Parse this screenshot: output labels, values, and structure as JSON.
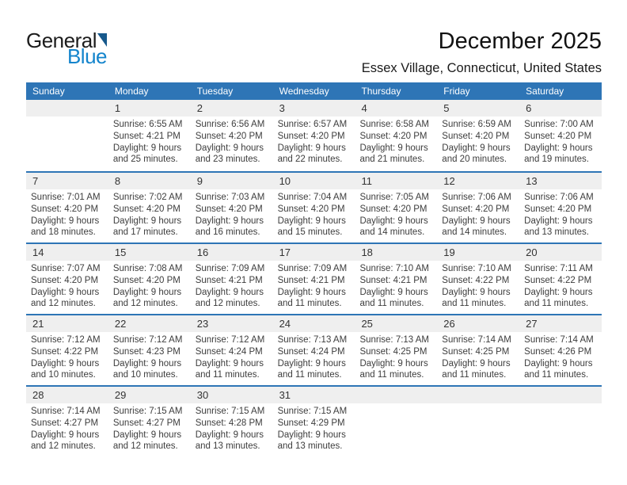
{
  "logo": {
    "text_general": "General",
    "text_blue": "Blue"
  },
  "header": {
    "title": "December 2025",
    "location": "Essex Village, Connecticut, United States"
  },
  "weekday_headers": [
    "Sunday",
    "Monday",
    "Tuesday",
    "Wednesday",
    "Thursday",
    "Friday",
    "Saturday"
  ],
  "colors": {
    "header_blue": "#2E75B6",
    "date_band_gray": "#EFEFEF",
    "logo_blue": "#1384CC",
    "logo_triangle_blue": "#17598C"
  },
  "weeks": [
    [
      null,
      {
        "date": "1",
        "lines": [
          "Sunrise: 6:55 AM",
          "Sunset: 4:21 PM",
          "Daylight: 9 hours",
          "and 25 minutes."
        ]
      },
      {
        "date": "2",
        "lines": [
          "Sunrise: 6:56 AM",
          "Sunset: 4:20 PM",
          "Daylight: 9 hours",
          "and 23 minutes."
        ]
      },
      {
        "date": "3",
        "lines": [
          "Sunrise: 6:57 AM",
          "Sunset: 4:20 PM",
          "Daylight: 9 hours",
          "and 22 minutes."
        ]
      },
      {
        "date": "4",
        "lines": [
          "Sunrise: 6:58 AM",
          "Sunset: 4:20 PM",
          "Daylight: 9 hours",
          "and 21 minutes."
        ]
      },
      {
        "date": "5",
        "lines": [
          "Sunrise: 6:59 AM",
          "Sunset: 4:20 PM",
          "Daylight: 9 hours",
          "and 20 minutes."
        ]
      },
      {
        "date": "6",
        "lines": [
          "Sunrise: 7:00 AM",
          "Sunset: 4:20 PM",
          "Daylight: 9 hours",
          "and 19 minutes."
        ]
      }
    ],
    [
      {
        "date": "7",
        "lines": [
          "Sunrise: 7:01 AM",
          "Sunset: 4:20 PM",
          "Daylight: 9 hours",
          "and 18 minutes."
        ]
      },
      {
        "date": "8",
        "lines": [
          "Sunrise: 7:02 AM",
          "Sunset: 4:20 PM",
          "Daylight: 9 hours",
          "and 17 minutes."
        ]
      },
      {
        "date": "9",
        "lines": [
          "Sunrise: 7:03 AM",
          "Sunset: 4:20 PM",
          "Daylight: 9 hours",
          "and 16 minutes."
        ]
      },
      {
        "date": "10",
        "lines": [
          "Sunrise: 7:04 AM",
          "Sunset: 4:20 PM",
          "Daylight: 9 hours",
          "and 15 minutes."
        ]
      },
      {
        "date": "11",
        "lines": [
          "Sunrise: 7:05 AM",
          "Sunset: 4:20 PM",
          "Daylight: 9 hours",
          "and 14 minutes."
        ]
      },
      {
        "date": "12",
        "lines": [
          "Sunrise: 7:06 AM",
          "Sunset: 4:20 PM",
          "Daylight: 9 hours",
          "and 14 minutes."
        ]
      },
      {
        "date": "13",
        "lines": [
          "Sunrise: 7:06 AM",
          "Sunset: 4:20 PM",
          "Daylight: 9 hours",
          "and 13 minutes."
        ]
      }
    ],
    [
      {
        "date": "14",
        "lines": [
          "Sunrise: 7:07 AM",
          "Sunset: 4:20 PM",
          "Daylight: 9 hours",
          "and 12 minutes."
        ]
      },
      {
        "date": "15",
        "lines": [
          "Sunrise: 7:08 AM",
          "Sunset: 4:20 PM",
          "Daylight: 9 hours",
          "and 12 minutes."
        ]
      },
      {
        "date": "16",
        "lines": [
          "Sunrise: 7:09 AM",
          "Sunset: 4:21 PM",
          "Daylight: 9 hours",
          "and 12 minutes."
        ]
      },
      {
        "date": "17",
        "lines": [
          "Sunrise: 7:09 AM",
          "Sunset: 4:21 PM",
          "Daylight: 9 hours",
          "and 11 minutes."
        ]
      },
      {
        "date": "18",
        "lines": [
          "Sunrise: 7:10 AM",
          "Sunset: 4:21 PM",
          "Daylight: 9 hours",
          "and 11 minutes."
        ]
      },
      {
        "date": "19",
        "lines": [
          "Sunrise: 7:10 AM",
          "Sunset: 4:22 PM",
          "Daylight: 9 hours",
          "and 11 minutes."
        ]
      },
      {
        "date": "20",
        "lines": [
          "Sunrise: 7:11 AM",
          "Sunset: 4:22 PM",
          "Daylight: 9 hours",
          "and 11 minutes."
        ]
      }
    ],
    [
      {
        "date": "21",
        "lines": [
          "Sunrise: 7:12 AM",
          "Sunset: 4:22 PM",
          "Daylight: 9 hours",
          "and 10 minutes."
        ]
      },
      {
        "date": "22",
        "lines": [
          "Sunrise: 7:12 AM",
          "Sunset: 4:23 PM",
          "Daylight: 9 hours",
          "and 10 minutes."
        ]
      },
      {
        "date": "23",
        "lines": [
          "Sunrise: 7:12 AM",
          "Sunset: 4:24 PM",
          "Daylight: 9 hours",
          "and 11 minutes."
        ]
      },
      {
        "date": "24",
        "lines": [
          "Sunrise: 7:13 AM",
          "Sunset: 4:24 PM",
          "Daylight: 9 hours",
          "and 11 minutes."
        ]
      },
      {
        "date": "25",
        "lines": [
          "Sunrise: 7:13 AM",
          "Sunset: 4:25 PM",
          "Daylight: 9 hours",
          "and 11 minutes."
        ]
      },
      {
        "date": "26",
        "lines": [
          "Sunrise: 7:14 AM",
          "Sunset: 4:25 PM",
          "Daylight: 9 hours",
          "and 11 minutes."
        ]
      },
      {
        "date": "27",
        "lines": [
          "Sunrise: 7:14 AM",
          "Sunset: 4:26 PM",
          "Daylight: 9 hours",
          "and 11 minutes."
        ]
      }
    ],
    [
      {
        "date": "28",
        "lines": [
          "Sunrise: 7:14 AM",
          "Sunset: 4:27 PM",
          "Daylight: 9 hours",
          "and 12 minutes."
        ]
      },
      {
        "date": "29",
        "lines": [
          "Sunrise: 7:15 AM",
          "Sunset: 4:27 PM",
          "Daylight: 9 hours",
          "and 12 minutes."
        ]
      },
      {
        "date": "30",
        "lines": [
          "Sunrise: 7:15 AM",
          "Sunset: 4:28 PM",
          "Daylight: 9 hours",
          "and 13 minutes."
        ]
      },
      {
        "date": "31",
        "lines": [
          "Sunrise: 7:15 AM",
          "Sunset: 4:29 PM",
          "Daylight: 9 hours",
          "and 13 minutes."
        ]
      },
      null,
      null,
      null
    ]
  ]
}
